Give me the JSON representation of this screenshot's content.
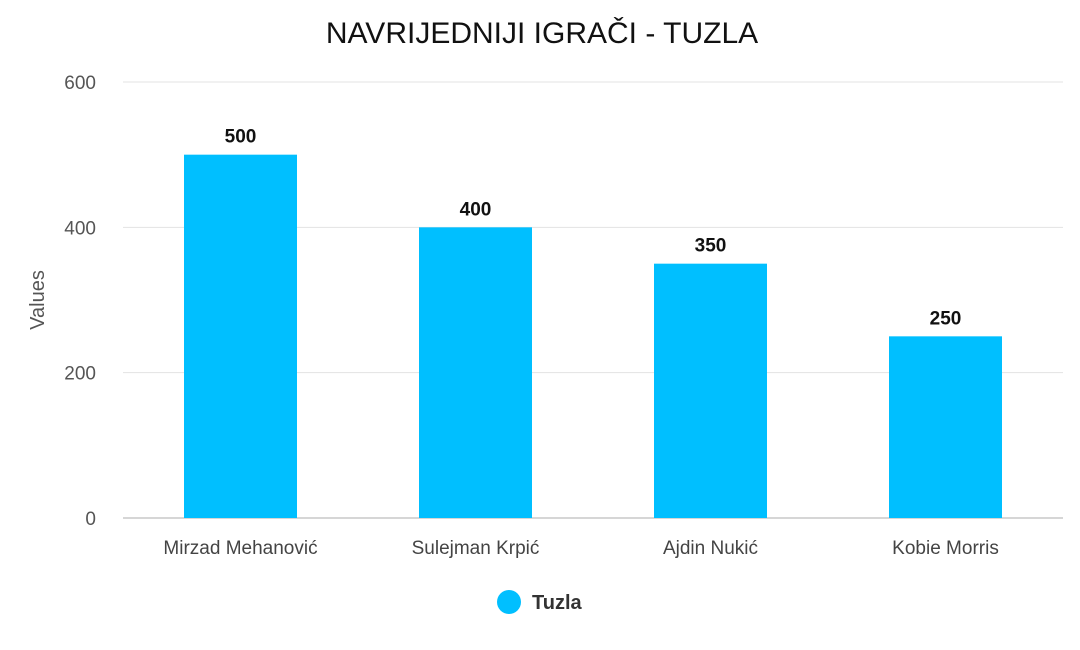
{
  "chart_data": {
    "type": "bar",
    "title": "NAVRIJEDNIJI IGRAČI - TUZLA",
    "xlabel": "",
    "ylabel": "Values",
    "ylim": [
      0,
      600
    ],
    "yticks": [
      0,
      200,
      400,
      600
    ],
    "grid": true,
    "legend_position": "bottom",
    "categories": [
      "Mirzad Mehanović",
      "Sulejman Krpić",
      "Ajdin Nukić",
      "Kobie Morris"
    ],
    "series": [
      {
        "name": "Tuzla",
        "values": [
          500,
          400,
          350,
          250
        ],
        "color": "#00BFFF"
      }
    ],
    "data_labels": [
      "500",
      "400",
      "350",
      "250"
    ]
  }
}
